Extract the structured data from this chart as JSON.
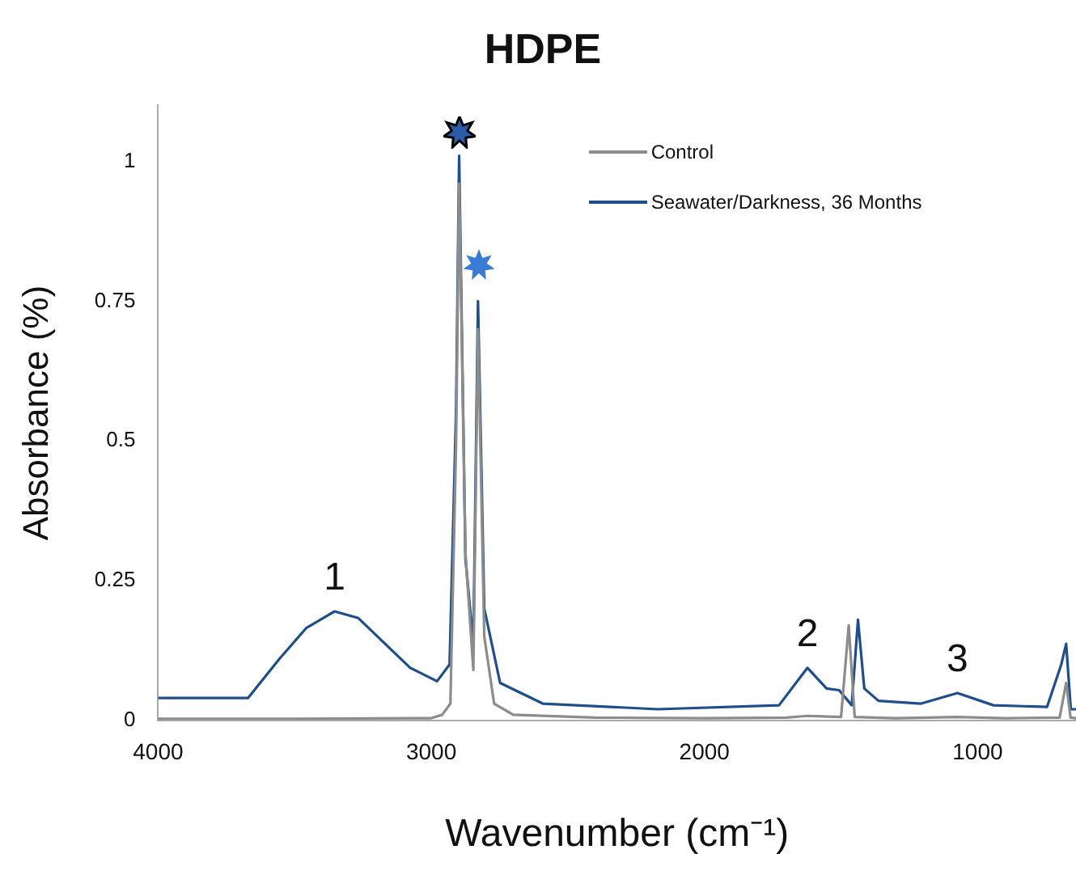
{
  "chart_data": {
    "type": "line",
    "title": "HDPE",
    "xlabel": "Wavenumber (cm⁻¹)",
    "ylabel": "Absorbance (%)",
    "xlim": [
      4000,
      640
    ],
    "xticks": [
      4000,
      3000,
      2000,
      1000
    ],
    "ylim": [
      0,
      1.1
    ],
    "yticks": [
      0,
      0.25,
      0.5,
      0.75,
      1
    ],
    "grid": false,
    "legend": "top right",
    "marker": "none",
    "line_style": "solid",
    "annotations": [
      {
        "text": "1",
        "x": 3354,
        "y": 0.195
      },
      {
        "text": "2",
        "x": 1623,
        "y": 0.094
      },
      {
        "text": "3",
        "x": 1074,
        "y": 0.049
      }
    ],
    "series": [
      {
        "name": "Control",
        "color": "#8c8c8c",
        "x": [
          4000,
          3500,
          3000,
          2960,
          2930,
          2909,
          2898,
          2875,
          2846,
          2829,
          2806,
          2770,
          2700,
          2400,
          2000,
          1700,
          1623,
          1500,
          1472,
          1450,
          1300,
          1074,
          900,
          700,
          676,
          660,
          640
        ],
        "values": [
          0.003,
          0.003,
          0.004,
          0.01,
          0.03,
          0.5,
          0.96,
          0.3,
          0.09,
          0.7,
          0.15,
          0.03,
          0.01,
          0.005,
          0.004,
          0.005,
          0.008,
          0.006,
          0.17,
          0.006,
          0.004,
          0.006,
          0.004,
          0.005,
          0.067,
          0.005,
          0.004
        ]
      },
      {
        "name": "Seawater/Darkness, 36 Months",
        "color": "#1f4e8c",
        "x": [
          4000,
          3671,
          3556,
          3458,
          3354,
          3267,
          3169,
          3077,
          2979,
          2933,
          2909,
          2898,
          2875,
          2846,
          2829,
          2806,
          2748,
          2592,
          2171,
          1727,
          1623,
          1553,
          1507,
          1461,
          1438,
          1415,
          1363,
          1207,
          1074,
          942,
          746,
          694,
          676,
          659,
          640
        ],
        "values": [
          0.04,
          0.04,
          0.11,
          0.165,
          0.195,
          0.183,
          0.137,
          0.094,
          0.07,
          0.1,
          0.56,
          1.01,
          0.29,
          0.137,
          0.75,
          0.2,
          0.067,
          0.03,
          0.02,
          0.027,
          0.094,
          0.057,
          0.054,
          0.027,
          0.18,
          0.057,
          0.035,
          0.03,
          0.049,
          0.027,
          0.024,
          0.1,
          0.137,
          0.02,
          0.02
        ]
      }
    ]
  }
}
